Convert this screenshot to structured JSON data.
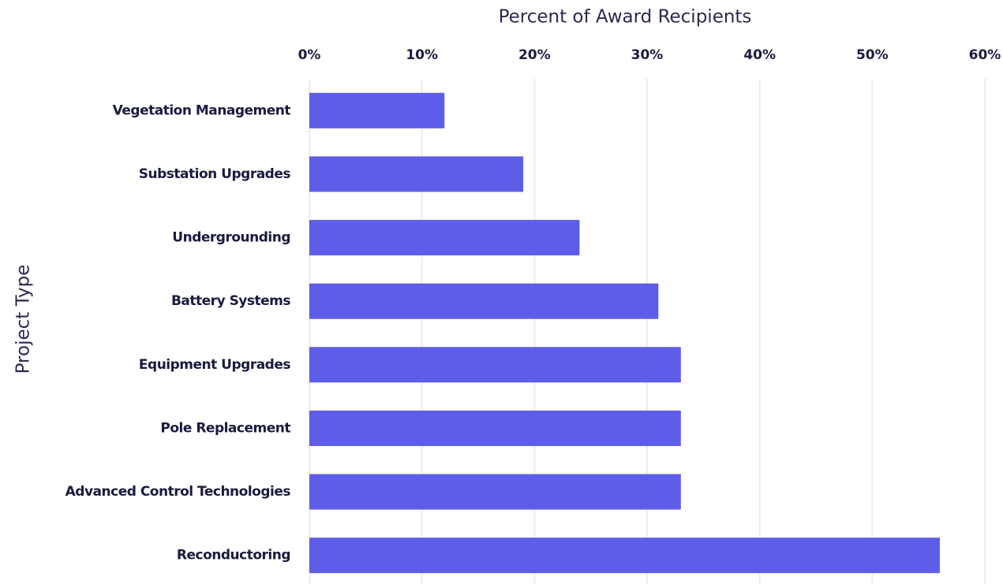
{
  "chart_data": {
    "type": "barh",
    "xlabel": "Percent of Award Recipients",
    "ylabel": "Project Type",
    "categories": [
      "Vegetation Management",
      "Substation Upgrades",
      "Undergrounding",
      "Battery Systems",
      "Equipment Upgrades",
      "Pole Replacement",
      "Advanced Control Technologies",
      "Reconductoring"
    ],
    "values": [
      12,
      19,
      24,
      31,
      33,
      33,
      33,
      56
    ],
    "color": "#5d5de8",
    "xlim": [
      0,
      60
    ],
    "xticks": [
      {
        "value": 0,
        "label": "0%"
      },
      {
        "value": 10,
        "label": "10%"
      },
      {
        "value": 20,
        "label": "20%"
      },
      {
        "value": 30,
        "label": "30%"
      },
      {
        "value": 40,
        "label": "40%"
      },
      {
        "value": 50,
        "label": "50%"
      },
      {
        "value": 60,
        "label": "60%"
      }
    ],
    "grid": true
  }
}
